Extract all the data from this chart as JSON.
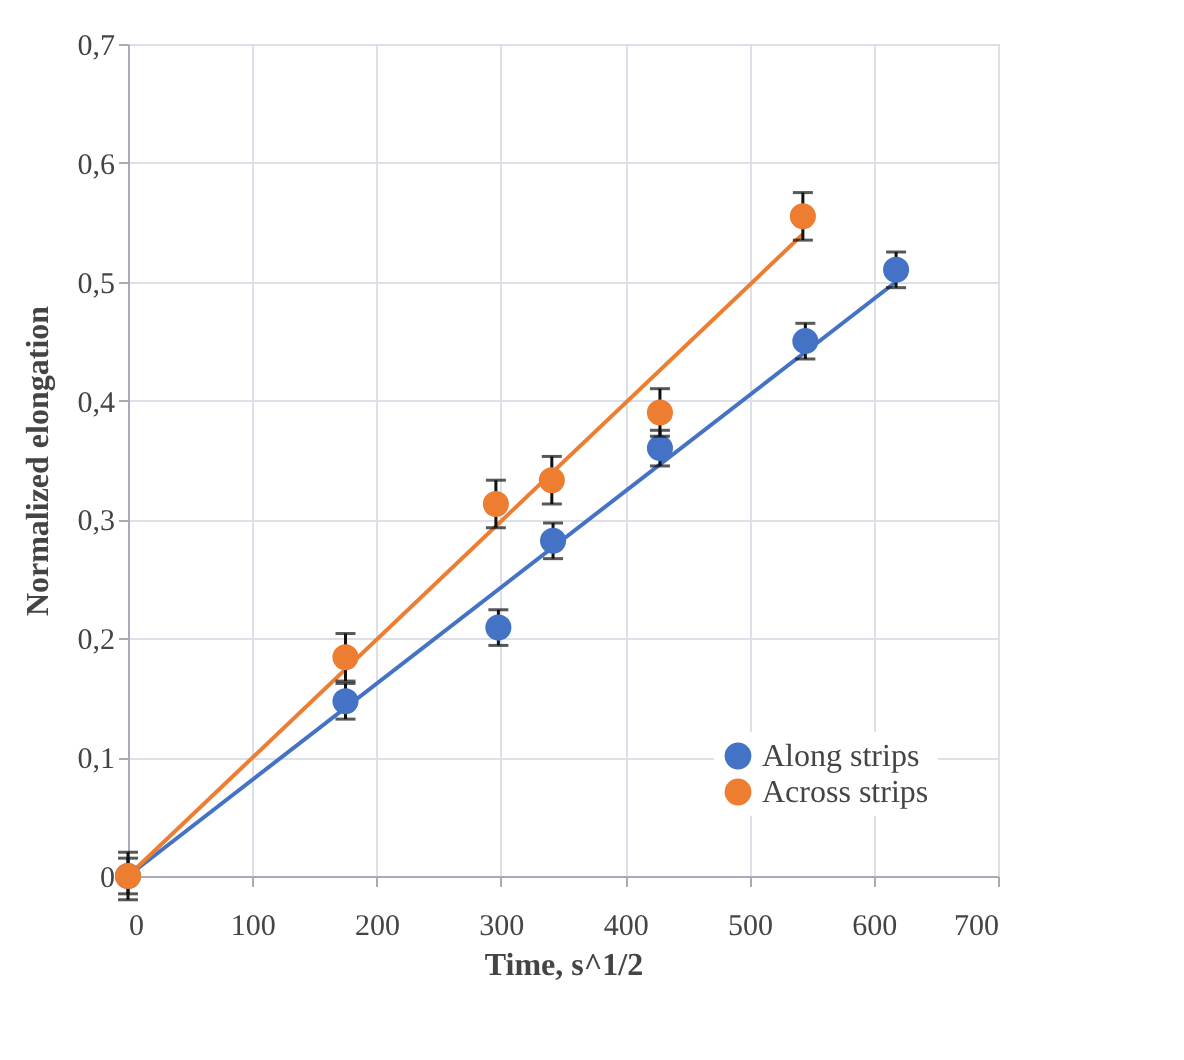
{
  "chart_data": {
    "type": "scatter",
    "xlabel": "Time, s^1/2",
    "ylabel": "Normalized elongation",
    "xlim": [
      0,
      700
    ],
    "xticks": [
      0,
      100,
      200,
      300,
      400,
      500,
      600,
      700
    ],
    "ylim": [
      0,
      0.7
    ],
    "yticks": [
      0,
      {
        "value": 0.1,
        "label": "0,1"
      },
      {
        "value": 0.2,
        "label": "0,2"
      },
      {
        "value": 0.3,
        "label": "0,3"
      },
      {
        "value": 0.4,
        "label": "0,4"
      },
      {
        "value": 0.5,
        "label": "0,5"
      },
      {
        "value": 0.6,
        "label": "0,6"
      },
      {
        "value": 0.7,
        "label": "0,7"
      }
    ],
    "grid": true,
    "legend": "bottom right",
    "marker": "circle",
    "series": [
      {
        "type": "line",
        "marker": "none",
        "color": "#4472c4",
        "x": [
          0,
          618
        ],
        "values": [
          0,
          0.5
        ]
      },
      {
        "type": "line",
        "marker": "none",
        "color": "#ed7d31",
        "x": [
          0,
          543
        ],
        "values": [
          0,
          0.54
        ]
      },
      {
        "name": "Along strips",
        "color": "#4472c4",
        "x": [
          0,
          175,
          298,
          342,
          428,
          545,
          618
        ],
        "values": [
          0,
          0.147,
          0.209,
          0.282,
          0.36,
          0.45,
          0.51
        ],
        "errors": [
          0.015,
          0.015,
          0.015,
          0.015,
          0.015,
          0.015,
          0.015
        ]
      },
      {
        "name": "Across strips",
        "color": "#ed7d31",
        "x": [
          0,
          175,
          296,
          341,
          428,
          543
        ],
        "values": [
          0,
          0.184,
          0.313,
          0.333,
          0.39,
          0.555
        ],
        "errors": [
          0.02,
          0.02,
          0.02,
          0.02,
          0.02,
          0.02
        ]
      }
    ]
  }
}
